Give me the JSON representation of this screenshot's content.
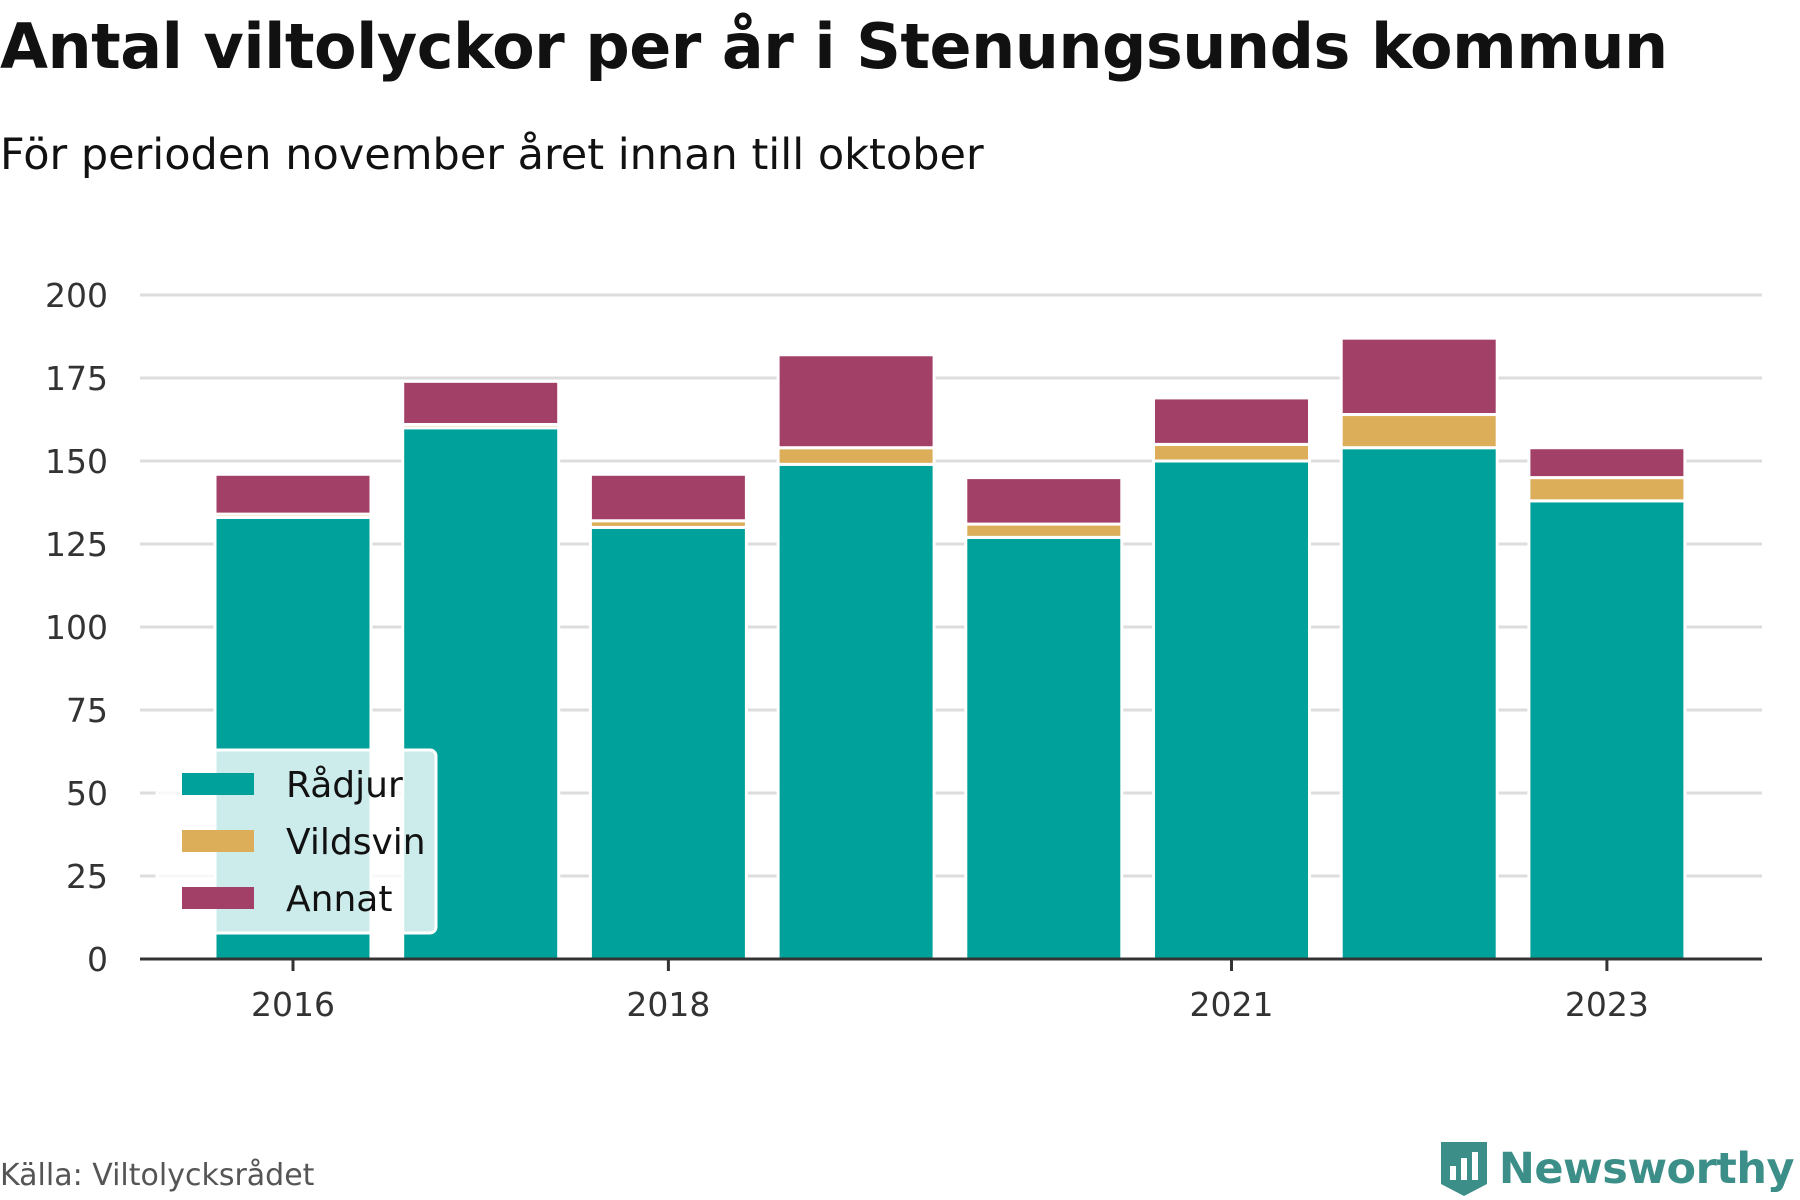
{
  "title": "Antal viltolyckor per år i Stenungsunds kommun",
  "subtitle": "För perioden november året innan till oktober",
  "source": "Källa: Viltolycksrådet",
  "brand": "Newsworthy",
  "colors": {
    "radjur": "#00a19a",
    "vildsvin": "#dcae5a",
    "annat": "#a34068",
    "grid": "#dddddd",
    "axis": "#333333",
    "brand": "#3c8f88"
  },
  "chart_data": {
    "type": "bar",
    "stacked": true,
    "title": "Antal viltolyckor per år i Stenungsunds kommun",
    "subtitle": "För perioden november året innan till oktober",
    "categories": [
      "2016",
      "2017",
      "2018",
      "2019",
      "2020",
      "2021",
      "2022",
      "2023"
    ],
    "x_tick_labels": [
      "2016",
      "",
      "2018",
      "",
      "",
      "2021",
      "",
      "2023"
    ],
    "series": [
      {
        "name": "Rådjur",
        "color": "#00a19a",
        "values": [
          133,
          160,
          130,
          149,
          127,
          150,
          154,
          138
        ]
      },
      {
        "name": "Vildsvin",
        "color": "#dcae5a",
        "values": [
          1,
          1,
          2,
          5,
          4,
          5,
          10,
          7
        ]
      },
      {
        "name": "Annat",
        "color": "#a34068",
        "values": [
          12,
          13,
          14,
          28,
          14,
          14,
          23,
          9
        ]
      }
    ],
    "yticks": [
      0,
      25,
      50,
      75,
      100,
      125,
      150,
      175,
      200
    ],
    "ylim": [
      0,
      200
    ],
    "xlabel": "",
    "ylabel": "",
    "grid": true,
    "legend_position": "bottom-left"
  }
}
